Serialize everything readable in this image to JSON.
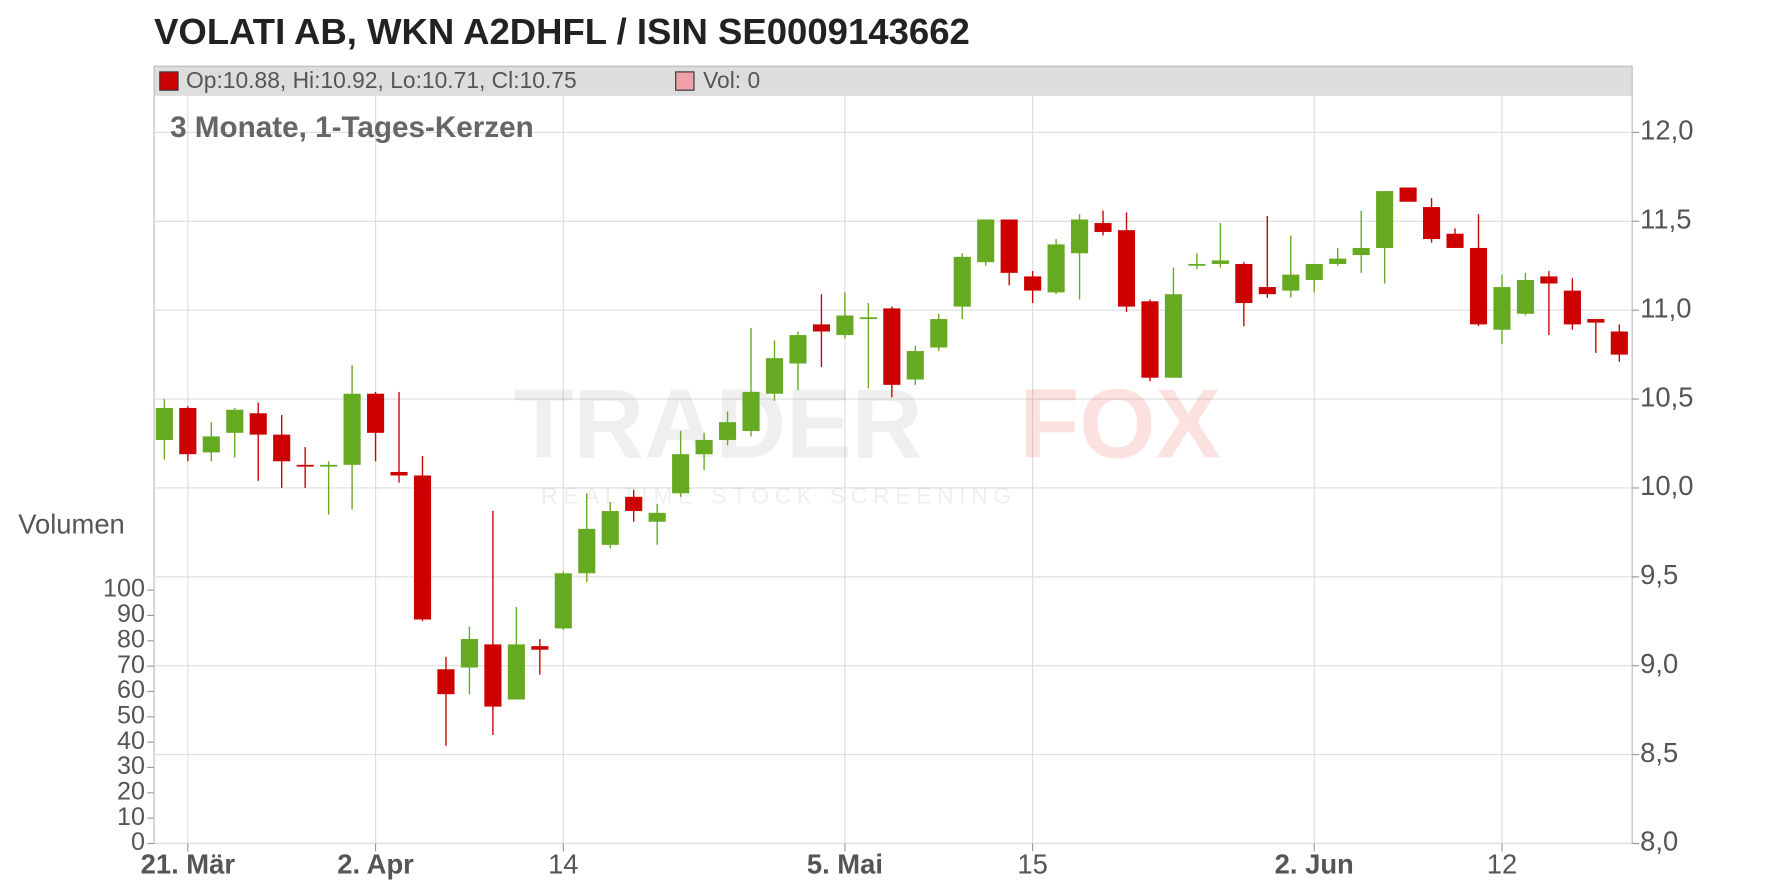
{
  "chart_data": {
    "type": "candlestick",
    "title": "VOLATI AB, WKN A2DHFL / ISIN SE0009143662",
    "subtitle": "3 Monate, 1-Tages-Kerzen",
    "legend": {
      "price_text": "Op:10.88, Hi:10.92, Lo:10.71, Cl:10.75",
      "price_color": "#cc0000",
      "volume_text": "Vol: 0",
      "volume_color": "#f0a0a8"
    },
    "watermark": {
      "brand_a": "TRADER",
      "brand_b": "FOX",
      "tagline": "REALTIME STOCK SCREENING"
    },
    "up_color": "#66aa22",
    "down_color": "#cc0000",
    "grid": true,
    "categories": [
      null,
      "21. Mär",
      null,
      null,
      null,
      null,
      null,
      null,
      null,
      "2. Apr",
      null,
      null,
      null,
      null,
      null,
      null,
      null,
      "14",
      null,
      null,
      null,
      null,
      null,
      null,
      null,
      null,
      null,
      null,
      null,
      "5. Mai",
      null,
      null,
      null,
      null,
      null,
      null,
      null,
      "15",
      null,
      null,
      null,
      null,
      null,
      null,
      null,
      null,
      null,
      null,
      null,
      "2. Jun",
      null,
      null,
      null,
      null,
      null,
      null,
      null,
      "12",
      null,
      null,
      null,
      null,
      null
    ],
    "open": [
      10.27,
      10.45,
      10.2,
      10.31,
      10.42,
      10.3,
      10.13,
      10.12,
      10.13,
      10.53,
      10.09,
      10.07,
      8.98,
      8.99,
      9.12,
      8.81,
      9.11,
      9.21,
      9.52,
      9.68,
      9.95,
      9.81,
      9.97,
      10.19,
      10.27,
      10.32,
      10.53,
      10.7,
      10.92,
      10.86,
      10.95,
      11.01,
      10.61,
      10.79,
      11.02,
      11.27,
      11.51,
      11.19,
      11.1,
      11.32,
      11.49,
      11.45,
      11.05,
      10.62,
      11.25,
      11.26,
      11.26,
      11.13,
      11.11,
      11.17,
      11.26,
      11.31,
      11.35,
      11.69,
      11.58,
      11.43,
      11.35,
      10.89,
      10.98,
      11.19,
      11.11,
      10.95,
      10.88
    ],
    "high": [
      10.5,
      10.46,
      10.37,
      10.45,
      10.48,
      10.41,
      10.23,
      10.15,
      10.69,
      10.54,
      10.54,
      10.18,
      9.05,
      9.22,
      9.87,
      9.33,
      9.15,
      9.53,
      9.97,
      9.92,
      9.99,
      9.91,
      10.32,
      10.31,
      10.43,
      10.9,
      10.83,
      10.88,
      11.09,
      11.1,
      11.04,
      11.02,
      10.8,
      10.98,
      11.32,
      11.51,
      11.51,
      11.22,
      11.4,
      11.54,
      11.56,
      11.55,
      11.06,
      11.24,
      11.32,
      11.49,
      11.27,
      11.53,
      11.42,
      11.26,
      11.35,
      11.56,
      11.67,
      11.69,
      11.63,
      11.46,
      11.54,
      11.2,
      11.21,
      11.22,
      11.18,
      10.95,
      10.92
    ],
    "low": [
      10.16,
      10.15,
      10.15,
      10.17,
      10.04,
      10.0,
      10.0,
      9.85,
      9.88,
      10.15,
      10.03,
      9.25,
      8.55,
      8.84,
      8.61,
      8.81,
      8.95,
      9.2,
      9.47,
      9.66,
      9.81,
      9.68,
      9.95,
      10.1,
      10.24,
      10.29,
      10.49,
      10.55,
      10.68,
      10.84,
      10.56,
      10.51,
      10.58,
      10.77,
      10.95,
      11.25,
      11.14,
      11.04,
      11.09,
      11.06,
      11.42,
      10.99,
      10.6,
      10.62,
      11.23,
      11.24,
      10.91,
      11.07,
      11.07,
      11.1,
      11.25,
      11.21,
      11.15,
      11.61,
      11.38,
      11.35,
      10.91,
      10.81,
      10.97,
      10.86,
      10.89,
      10.76,
      10.71
    ],
    "close": [
      10.45,
      10.19,
      10.29,
      10.44,
      10.3,
      10.15,
      10.12,
      10.13,
      10.53,
      10.31,
      10.07,
      9.26,
      8.84,
      9.15,
      8.77,
      9.12,
      9.09,
      9.52,
      9.77,
      9.87,
      9.87,
      9.86,
      10.19,
      10.27,
      10.37,
      10.54,
      10.73,
      10.86,
      10.88,
      10.97,
      10.96,
      10.58,
      10.77,
      10.95,
      11.3,
      11.51,
      11.21,
      11.11,
      11.37,
      11.51,
      11.44,
      11.02,
      10.62,
      11.09,
      11.26,
      11.28,
      11.04,
      11.09,
      11.2,
      11.26,
      11.29,
      11.35,
      11.67,
      11.61,
      11.4,
      11.35,
      10.92,
      11.13,
      11.17,
      11.15,
      10.92,
      10.93,
      10.75
    ],
    "ylim": [
      8,
      12
    ],
    "yticks": [
      {
        "value": 8,
        "label": "8,0"
      },
      {
        "value": 8.5,
        "label": "8,5"
      },
      {
        "value": 9,
        "label": "9,0"
      },
      {
        "value": 9.5,
        "label": "9,5"
      },
      {
        "value": 10,
        "label": "10,0"
      },
      {
        "value": 10.5,
        "label": "10,5"
      },
      {
        "value": 11,
        "label": "11,0"
      },
      {
        "value": 11.5,
        "label": "11,5"
      },
      {
        "value": 12,
        "label": "12,0"
      }
    ],
    "y2label": "Volumen",
    "y2lim": [
      0,
      100
    ],
    "y2ticks": [
      0,
      10,
      20,
      30,
      40,
      50,
      60,
      70,
      80,
      90,
      100
    ]
  }
}
